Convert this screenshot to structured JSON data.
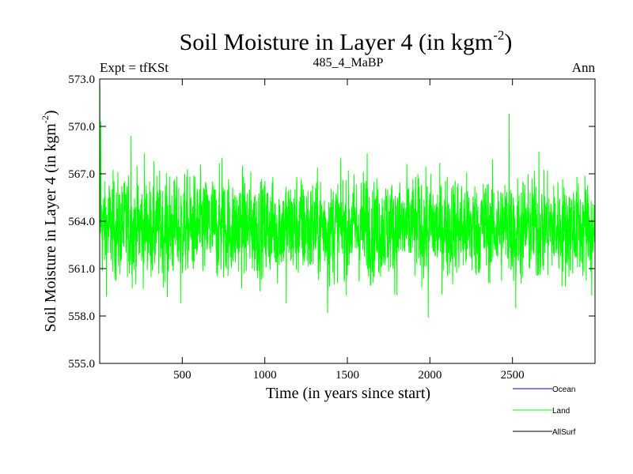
{
  "chart_data": {
    "type": "line",
    "title": "Soil Moisture in Layer 4 (in kgm",
    "title_superscript": "-2",
    "title_suffix": ")",
    "subtitle_left": "Expt = tfKSt",
    "subtitle_center": "485_4_MaBP",
    "subtitle_right": "Ann",
    "xlabel": "Time (in years since start)",
    "ylabel": "Soil Moisture in Layer 4 (in kgm",
    "ylabel_superscript": "-2",
    "ylabel_suffix": ")",
    "xlim": [
      0,
      3000
    ],
    "ylim": [
      555.0,
      573.0
    ],
    "xticks": [
      500,
      1000,
      1500,
      2000,
      2500
    ],
    "xtick_labels": [
      "500",
      "1000",
      "1500",
      "2000",
      "2500"
    ],
    "yticks": [
      555.0,
      558.0,
      561.0,
      564.0,
      567.0,
      570.0,
      573.0
    ],
    "ytick_labels": [
      "555.0",
      "558.0",
      "561.0",
      "564.0",
      "567.0",
      "570.0",
      "573.0"
    ],
    "legend": {
      "placement": "bottom-right",
      "entries": [
        {
          "name": "Ocean",
          "color": "#0000ff"
        },
        {
          "name": "Land",
          "color": "#00ff00"
        },
        {
          "name": "AllSurf",
          "color": "#000000"
        }
      ]
    },
    "series": [
      {
        "name": "Land",
        "color": "#00ff00",
        "x_start": 1,
        "x_step": 1,
        "count": 3000,
        "mean": 563.6,
        "spread": 1.5,
        "min": 557.9,
        "max": 572.6,
        "spikes": [
          {
            "x": 1,
            "y": 572.6
          },
          {
            "x": 8,
            "y": 570.3
          },
          {
            "x": 190,
            "y": 569.4
          },
          {
            "x": 270,
            "y": 568.3
          },
          {
            "x": 410,
            "y": 559.2
          },
          {
            "x": 490,
            "y": 558.8
          },
          {
            "x": 740,
            "y": 568.0
          },
          {
            "x": 1130,
            "y": 558.8
          },
          {
            "x": 1380,
            "y": 558.2
          },
          {
            "x": 1620,
            "y": 568.3
          },
          {
            "x": 1990,
            "y": 557.9
          },
          {
            "x": 2480,
            "y": 570.8
          },
          {
            "x": 2520,
            "y": 558.5
          },
          {
            "x": 2660,
            "y": 568.4
          },
          {
            "x": 2980,
            "y": 559.3
          }
        ]
      },
      {
        "name": "Ocean",
        "color": "#0000ff",
        "values": []
      },
      {
        "name": "AllSurf",
        "color": "#000000",
        "values": []
      }
    ]
  }
}
